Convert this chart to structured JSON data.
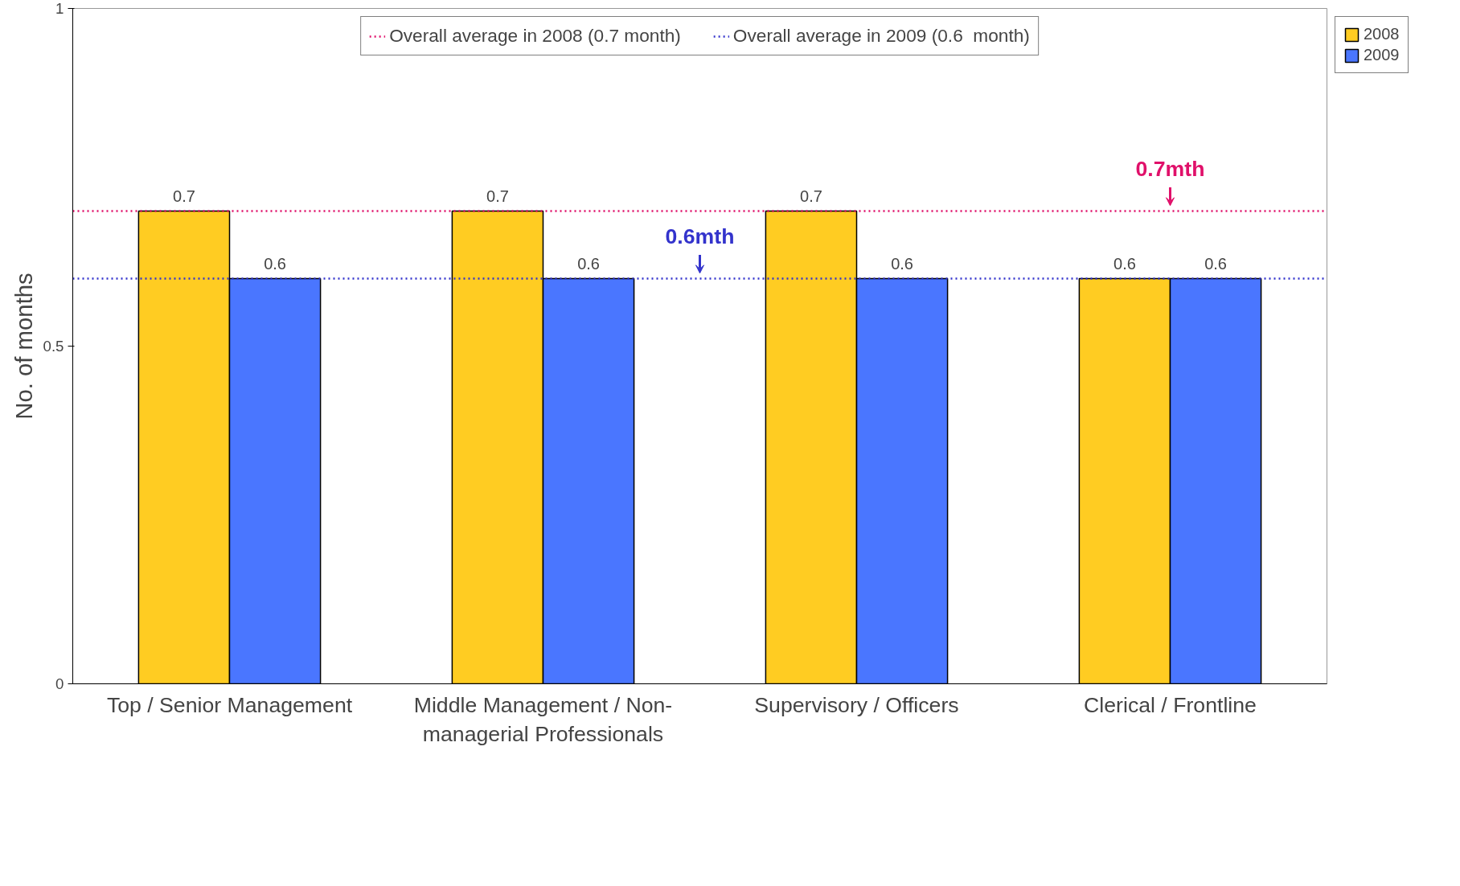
{
  "chart_data": {
    "type": "bar",
    "ylabel": "No. of months",
    "categories": [
      "Top / Senior Management",
      "Middle Management / Non-managerial Professionals",
      "Supervisory / Officers",
      "Clerical / Frontline"
    ],
    "series": [
      {
        "name": "2008",
        "color": "#ffcc22",
        "values": [
          0.7,
          0.7,
          0.7,
          0.6
        ]
      },
      {
        "name": "2009",
        "color": "#4a76ff",
        "values": [
          0.6,
          0.6,
          0.6,
          0.6
        ]
      }
    ],
    "ylim": [
      0,
      1
    ],
    "yticks": [
      0,
      0.5,
      1
    ],
    "data_labels": true,
    "legend": "right",
    "grid": false,
    "ref_lines": [
      {
        "axis": "y",
        "value": 0.7,
        "label": "Overall average in 2008 (0.7 month)",
        "color": "#e0106a",
        "line_style": "dotted"
      },
      {
        "axis": "y",
        "value": 0.6,
        "label": "Overall average in 2009 (0.6  month)",
        "color": "#3333cc",
        "line_style": "dotted"
      }
    ],
    "annotations": [
      {
        "text": "0.7mth",
        "x": "Clerical / Frontline",
        "y": 0.7
      },
      {
        "text": "0.6mth",
        "y": 0.6
      }
    ]
  }
}
